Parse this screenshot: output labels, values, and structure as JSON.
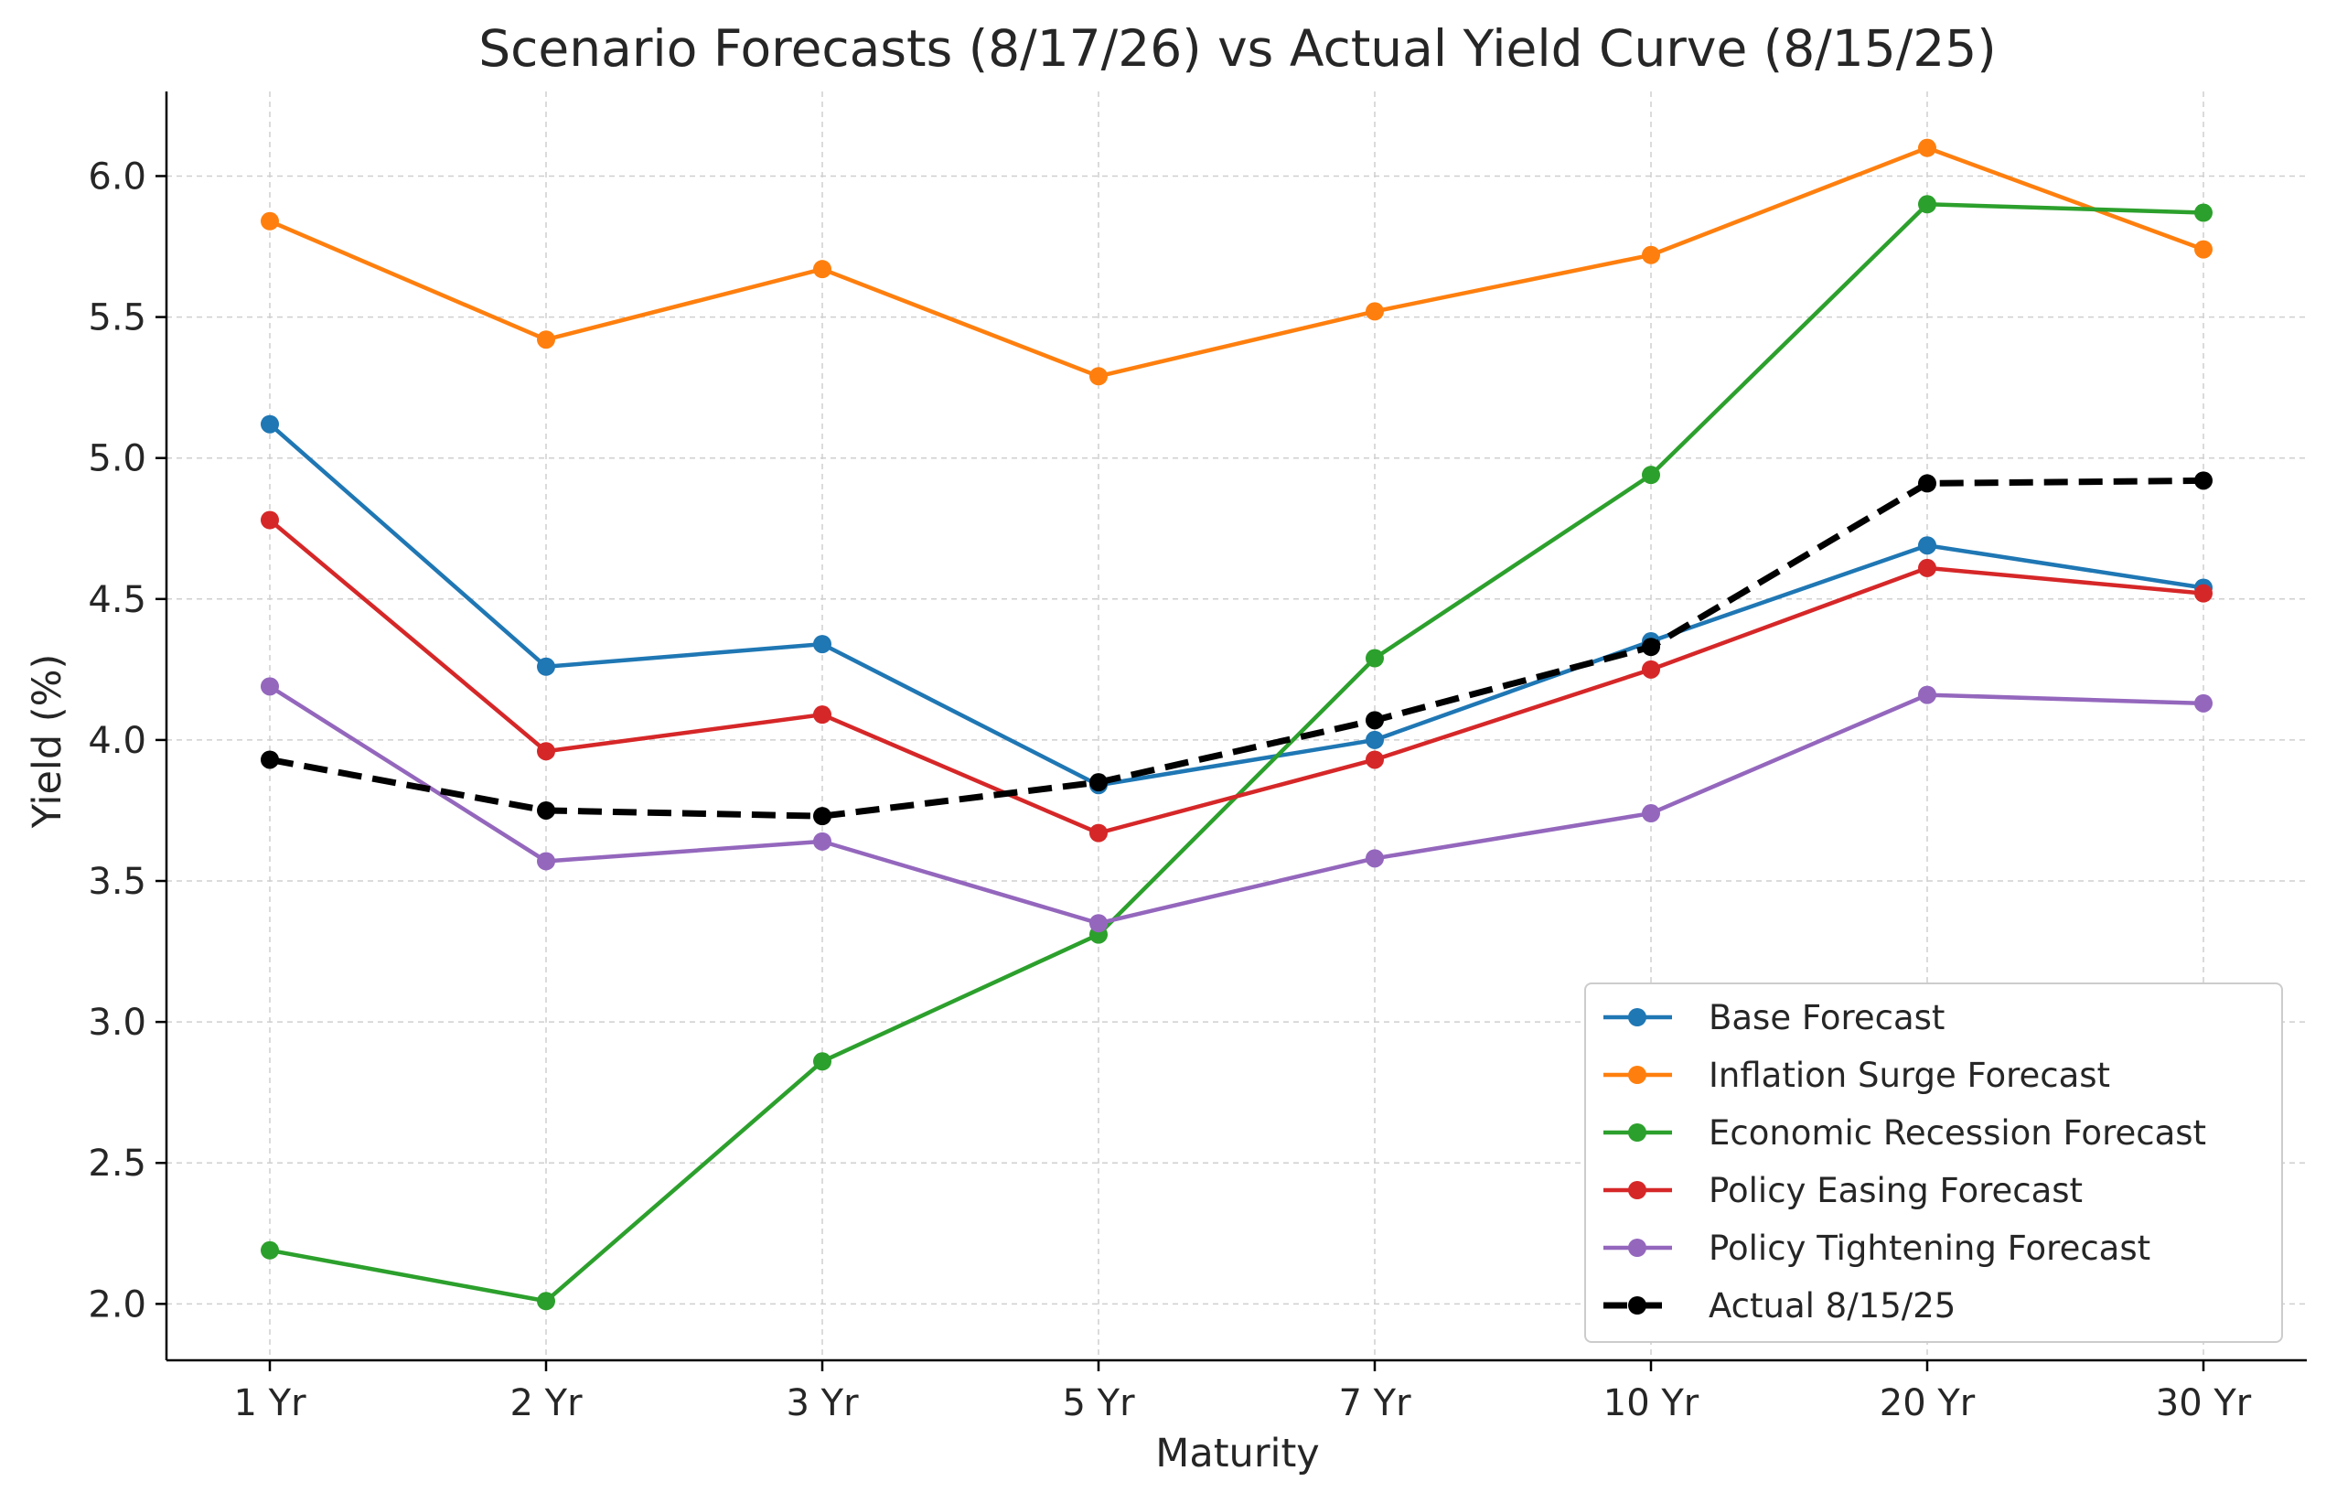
{
  "chart_data": {
    "type": "line",
    "title": "Scenario Forecasts (8/17/26) vs Actual Yield Curve (8/15/25)",
    "xlabel": "Maturity",
    "ylabel": "Yield (%)",
    "categories": [
      "1 Yr",
      "2 Yr",
      "3 Yr",
      "5 Yr",
      "7 Yr",
      "10 Yr",
      "20 Yr",
      "30 Yr"
    ],
    "ylim": [
      1.8,
      6.3
    ],
    "yticks": [
      2.0,
      2.5,
      3.0,
      3.5,
      4.0,
      4.5,
      5.0,
      5.5,
      6.0
    ],
    "grid": true,
    "legend_position": "lower-right",
    "series": [
      {
        "name": "Base Forecast",
        "color": "#1f77b4",
        "dashed": false,
        "values": [
          5.12,
          4.26,
          4.34,
          3.84,
          4.0,
          4.35,
          4.69,
          4.54
        ]
      },
      {
        "name": "Inflation Surge Forecast",
        "color": "#ff7f0e",
        "dashed": false,
        "values": [
          5.84,
          5.42,
          5.67,
          5.29,
          5.52,
          5.72,
          6.1,
          5.74
        ]
      },
      {
        "name": "Economic Recession Forecast",
        "color": "#2ca02c",
        "dashed": false,
        "values": [
          2.19,
          2.01,
          2.86,
          3.31,
          4.29,
          4.94,
          5.9,
          5.87
        ]
      },
      {
        "name": "Policy Easing Forecast",
        "color": "#d62728",
        "dashed": false,
        "values": [
          4.78,
          3.96,
          4.09,
          3.67,
          3.93,
          4.25,
          4.61,
          4.52
        ]
      },
      {
        "name": "Policy Tightening Forecast",
        "color": "#9467bd",
        "dashed": false,
        "values": [
          4.19,
          3.57,
          3.64,
          3.35,
          3.58,
          3.74,
          4.16,
          4.13
        ]
      },
      {
        "name": "Actual 8/15/25",
        "color": "#000000",
        "dashed": true,
        "values": [
          3.93,
          3.75,
          3.73,
          3.85,
          4.07,
          4.33,
          4.91,
          4.92
        ]
      }
    ]
  }
}
